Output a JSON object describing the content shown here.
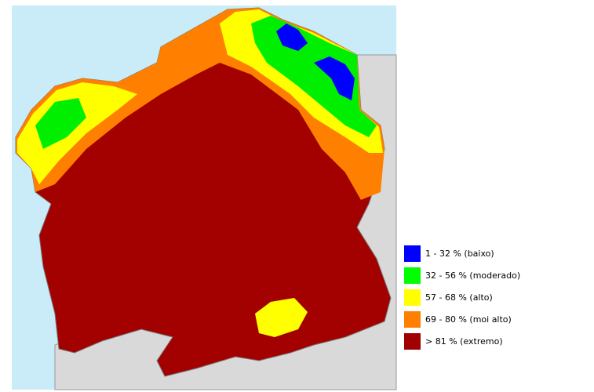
{
  "legend": {
    "entries": [
      {
        "label": "1 - 32 % (baixo)",
        "color": "#0000ff"
      },
      {
        "label": "32 - 56 % (moderado)",
        "color": "#00ff00"
      },
      {
        "label": "57 - 68 % (alto)",
        "color": "#ffff00"
      },
      {
        "label": "69 - 80 % (moi alto)",
        "color": "#ff8000"
      },
      {
        "label": "> 81 % (extremo)",
        "color": "#a00000"
      }
    ]
  }
}
